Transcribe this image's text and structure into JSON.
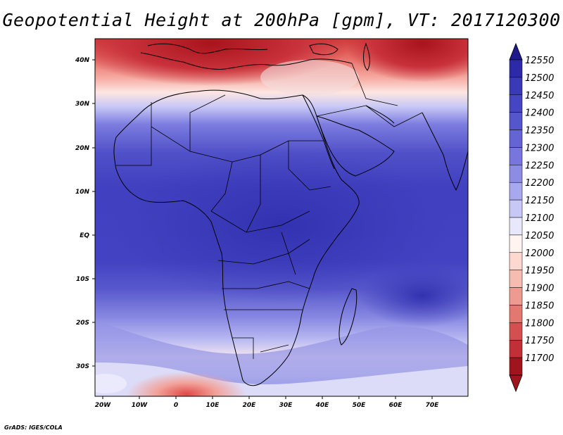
{
  "title": "Geopotential Height at 200hPa [gpm], VT: 2017120300",
  "footer": "GrADS: IGES/COLA",
  "map": {
    "variable": "Geopotential Height at 200hPa",
    "units": "gpm",
    "valid_time": "2017120300",
    "lon_labels": [
      "20W",
      "10W",
      "0",
      "10E",
      "20E",
      "30E",
      "40E",
      "50E",
      "60E",
      "70E"
    ],
    "lat_labels": [
      "40N",
      "30N",
      "20N",
      "10N",
      "EQ",
      "10S",
      "20S",
      "30S"
    ]
  },
  "colorbar": {
    "labels": [
      "12550",
      "12500",
      "12450",
      "12400",
      "12350",
      "12300",
      "12250",
      "12200",
      "12150",
      "12100",
      "12050",
      "12000",
      "11950",
      "11900",
      "11850",
      "11800",
      "11750",
      "11700"
    ],
    "colors": [
      "#1e1a8c",
      "#2c2aa8",
      "#3a3ab8",
      "#4646c4",
      "#5656cc",
      "#6464d4",
      "#7676dc",
      "#8c8ce4",
      "#a8a8ee",
      "#c8c8f6",
      "#e8e8fc",
      "#fff4f0",
      "#fcd8d0",
      "#f6bcb2",
      "#ee9a90",
      "#e27870",
      "#d45050",
      "#c03036",
      "#a0141e"
    ]
  }
}
